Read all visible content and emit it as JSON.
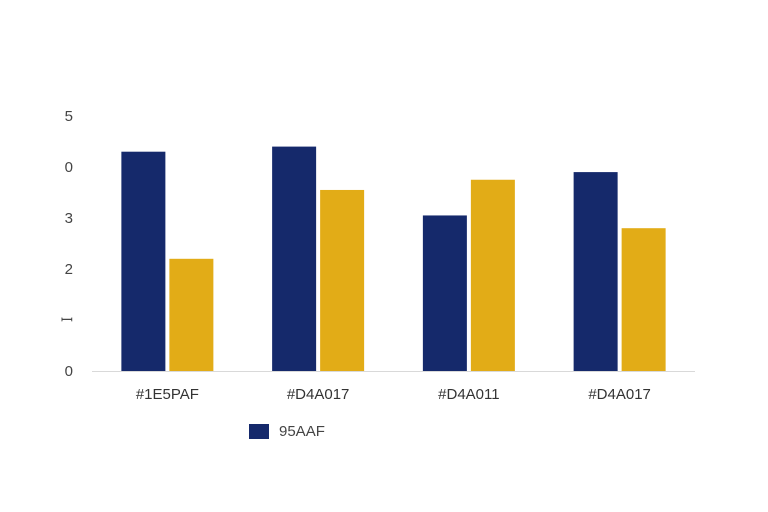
{
  "chart_data": {
    "type": "bar",
    "categories": [
      "#1E5PAF",
      "#D4A017",
      "#D4A011",
      "#D4A017"
    ],
    "series": [
      {
        "name": "95AAF",
        "color": "#15296B",
        "values": [
          4.3,
          4.4,
          3.05,
          3.9
        ]
      },
      {
        "color": "#E2AC17",
        "values": [
          2.2,
          3.55,
          3.75,
          2.8
        ]
      }
    ],
    "y_tick_labels": [
      "0",
      "ꟷ",
      "2",
      "3",
      "0",
      "5"
    ],
    "ylim": [
      0,
      5
    ],
    "grid": false,
    "legend": {
      "position": "bottom-left",
      "label": "95AAF",
      "color": "#15296B"
    }
  }
}
